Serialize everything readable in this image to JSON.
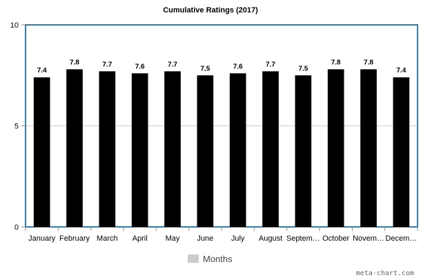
{
  "chart_data": {
    "type": "bar",
    "title": "Cumulative Ratings (2017)",
    "categories": [
      "January",
      "February",
      "March",
      "April",
      "May",
      "June",
      "July",
      "August",
      "Septem…",
      "October",
      "Novem…",
      "Decem…"
    ],
    "series": [
      {
        "name": "Months",
        "values": [
          7.4,
          7.8,
          7.7,
          7.6,
          7.7,
          7.5,
          7.6,
          7.7,
          7.5,
          7.8,
          7.8,
          7.4
        ],
        "color": "#000000"
      }
    ],
    "data_labels": [
      "7.4",
      "7.8",
      "7.7",
      "7.6",
      "7.7",
      "7.5",
      "7.6",
      "7.7",
      "7.5",
      "7.8",
      "7.8",
      "7.4"
    ],
    "xlabel": "",
    "ylabel": "",
    "ylim": [
      0,
      10
    ],
    "yticks": [
      "0",
      "5",
      "10"
    ],
    "grid": true,
    "legend": {
      "position": "bottom-center",
      "swatch_color": "#cccccc"
    },
    "plot_border_color": "#2a7fc1"
  },
  "credit": "meta-chart.com"
}
